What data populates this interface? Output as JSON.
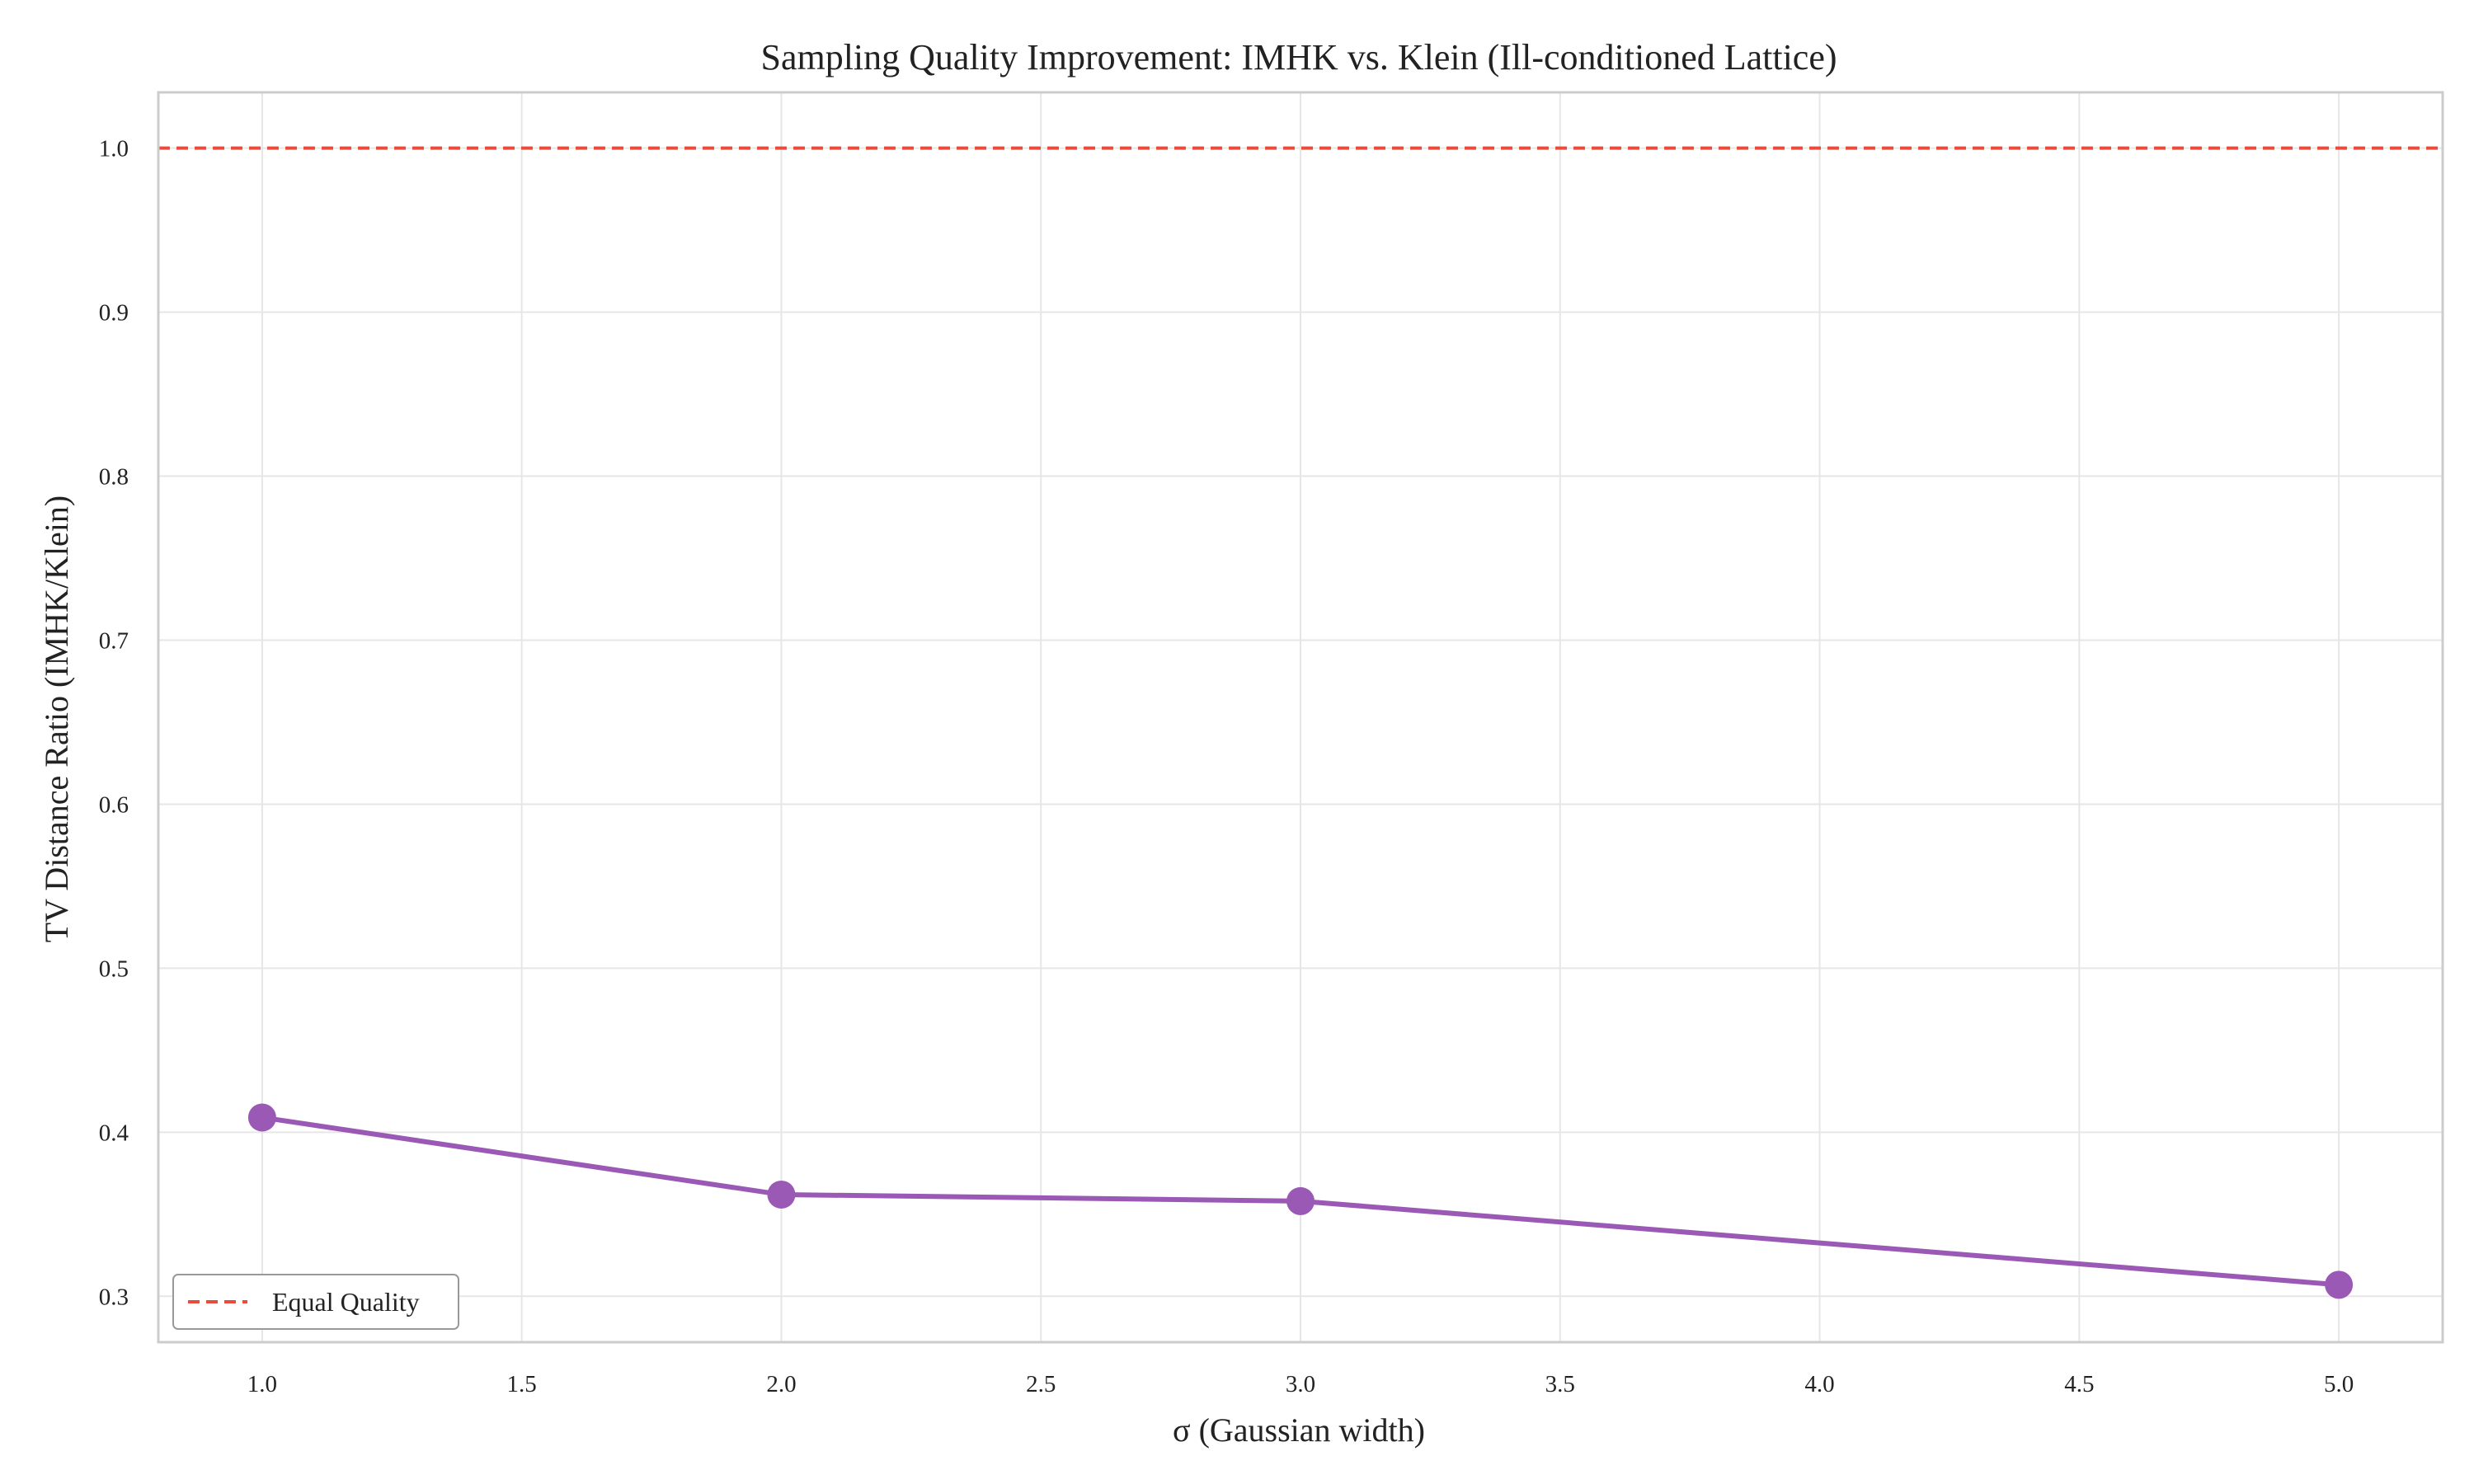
{
  "chart_data": {
    "type": "line",
    "title": "Sampling Quality Improvement: IMHK vs. Klein (Ill-conditioned Lattice)",
    "xlabel": "σ (Gaussian width)",
    "ylabel": "TV Distance Ratio (IMHK/Klein)",
    "xlim": [
      0.8,
      5.2
    ],
    "ylim": [
      0.272,
      1.034
    ],
    "grid": true,
    "x_ticks": [
      1.0,
      1.5,
      2.0,
      2.5,
      3.0,
      3.5,
      4.0,
      4.5,
      5.0
    ],
    "x_tick_labels": [
      "1.0",
      "1.5",
      "2.0",
      "2.5",
      "3.0",
      "3.5",
      "4.0",
      "4.5",
      "5.0"
    ],
    "y_ticks": [
      0.3,
      0.4,
      0.5,
      0.6,
      0.7,
      0.8,
      0.9,
      1.0
    ],
    "y_tick_labels": [
      "0.3",
      "0.4",
      "0.5",
      "0.6",
      "0.7",
      "0.8",
      "0.9",
      "1.0"
    ],
    "series": [
      {
        "x": [
          1.0,
          2.0,
          3.0,
          5.0
        ],
        "y": [
          0.409,
          0.362,
          0.358,
          0.307
        ],
        "color": "#9b59b6",
        "marker": "circle"
      }
    ],
    "reference_lines": [
      {
        "name": "Equal Quality",
        "y": 1.0,
        "style": "dashed",
        "color": "#e74c3c"
      }
    ],
    "legend": {
      "position": "lower-left",
      "entries": [
        "Equal Quality"
      ]
    }
  }
}
